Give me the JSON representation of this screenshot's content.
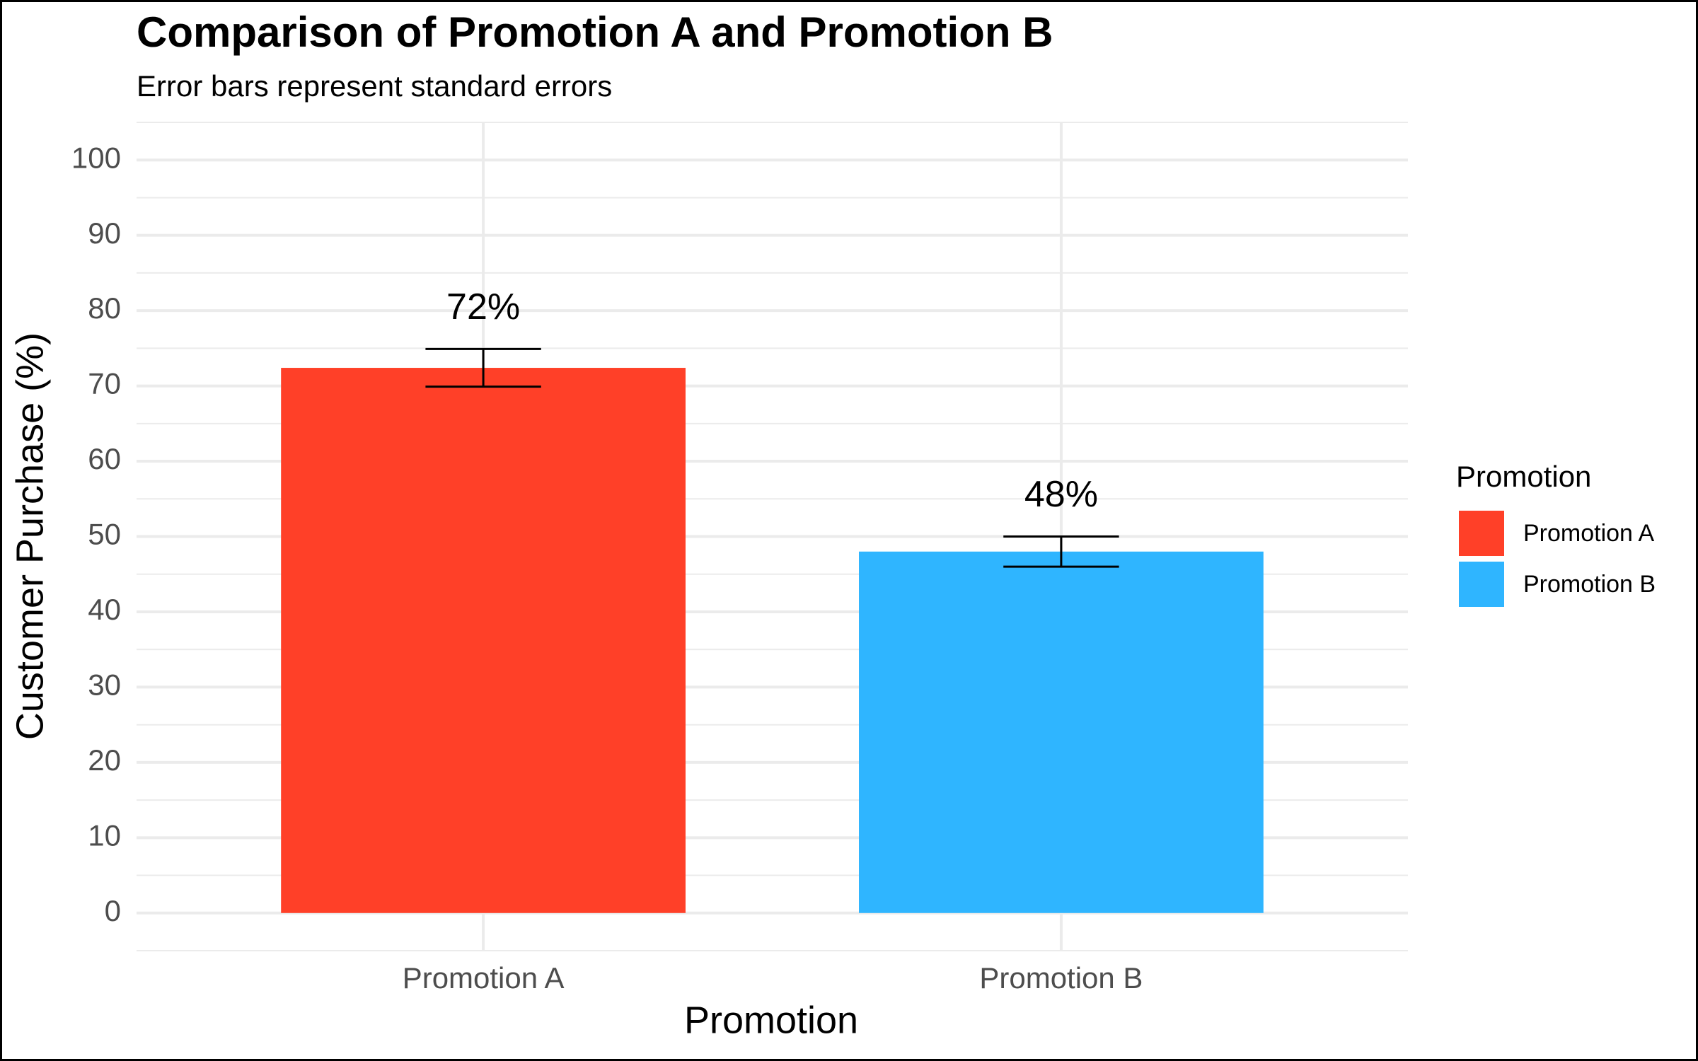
{
  "chart_data": {
    "type": "bar",
    "title": "Comparison of Promotion A and Promotion B",
    "subtitle": "Error bars represent standard errors",
    "x_label": "Promotion",
    "y_label": "Customer Purchase (%)",
    "categories": [
      "Promotion A",
      "Promotion B"
    ],
    "values": [
      72.4,
      48
    ],
    "errors": [
      2.5,
      2
    ],
    "value_labels": [
      "72%",
      "48%"
    ],
    "colors": [
      "#ff4028",
      "#2fb5ff"
    ],
    "legend_title": "Promotion",
    "legend": "right",
    "ylim": [
      -5,
      105
    ],
    "yticks": [
      0,
      10,
      20,
      30,
      40,
      50,
      60,
      70,
      80,
      90,
      100
    ],
    "minor_yticks": [
      -5,
      5,
      15,
      25,
      35,
      45,
      55,
      65,
      75,
      85,
      95,
      105
    ],
    "grid": true
  }
}
